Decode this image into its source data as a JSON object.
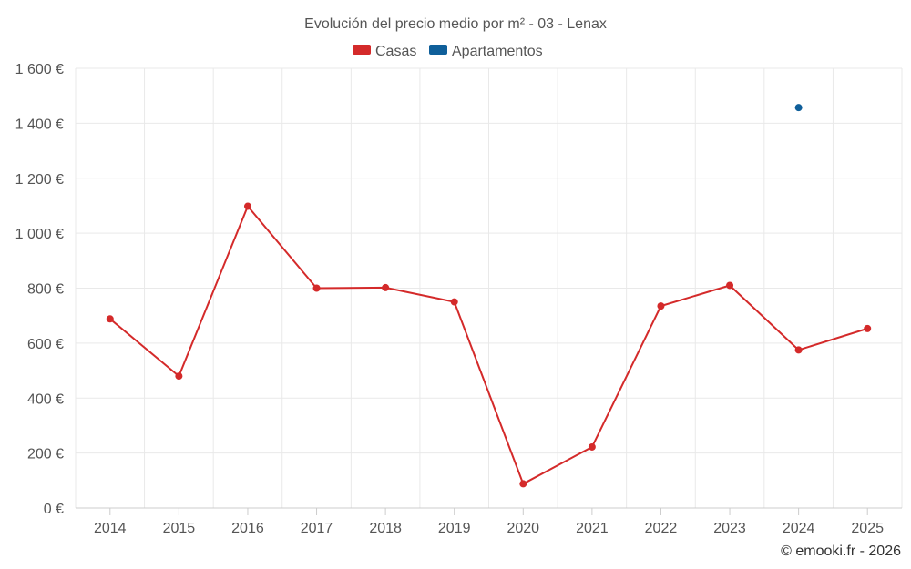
{
  "chart_data": {
    "type": "line",
    "title": "Evolución del precio medio por m² - 03 - Lenax",
    "categories": [
      "2014",
      "2015",
      "2016",
      "2017",
      "2018",
      "2019",
      "2020",
      "2021",
      "2022",
      "2023",
      "2024",
      "2025"
    ],
    "ylim": [
      0,
      1600
    ],
    "yticks": [
      0,
      200,
      400,
      600,
      800,
      1000,
      1200,
      1400,
      1600
    ],
    "ytick_labels": [
      "0 €",
      "200 €",
      "400 €",
      "600 €",
      "800 €",
      "1 000 €",
      "1 200 €",
      "1 400 €",
      "1 600 €"
    ],
    "grid": true,
    "legend_position": "top-center",
    "series": [
      {
        "name": "Casas",
        "color": "#d42a2a",
        "values": [
          688,
          480,
          1098,
          800,
          802,
          750,
          88,
          222,
          735,
          810,
          575,
          653
        ]
      },
      {
        "name": "Apartamentos",
        "color": "#0f5f9a",
        "values": [
          null,
          null,
          null,
          null,
          null,
          null,
          null,
          null,
          null,
          null,
          1457,
          null
        ]
      }
    ]
  },
  "credit": "© emooki.fr - 2026"
}
